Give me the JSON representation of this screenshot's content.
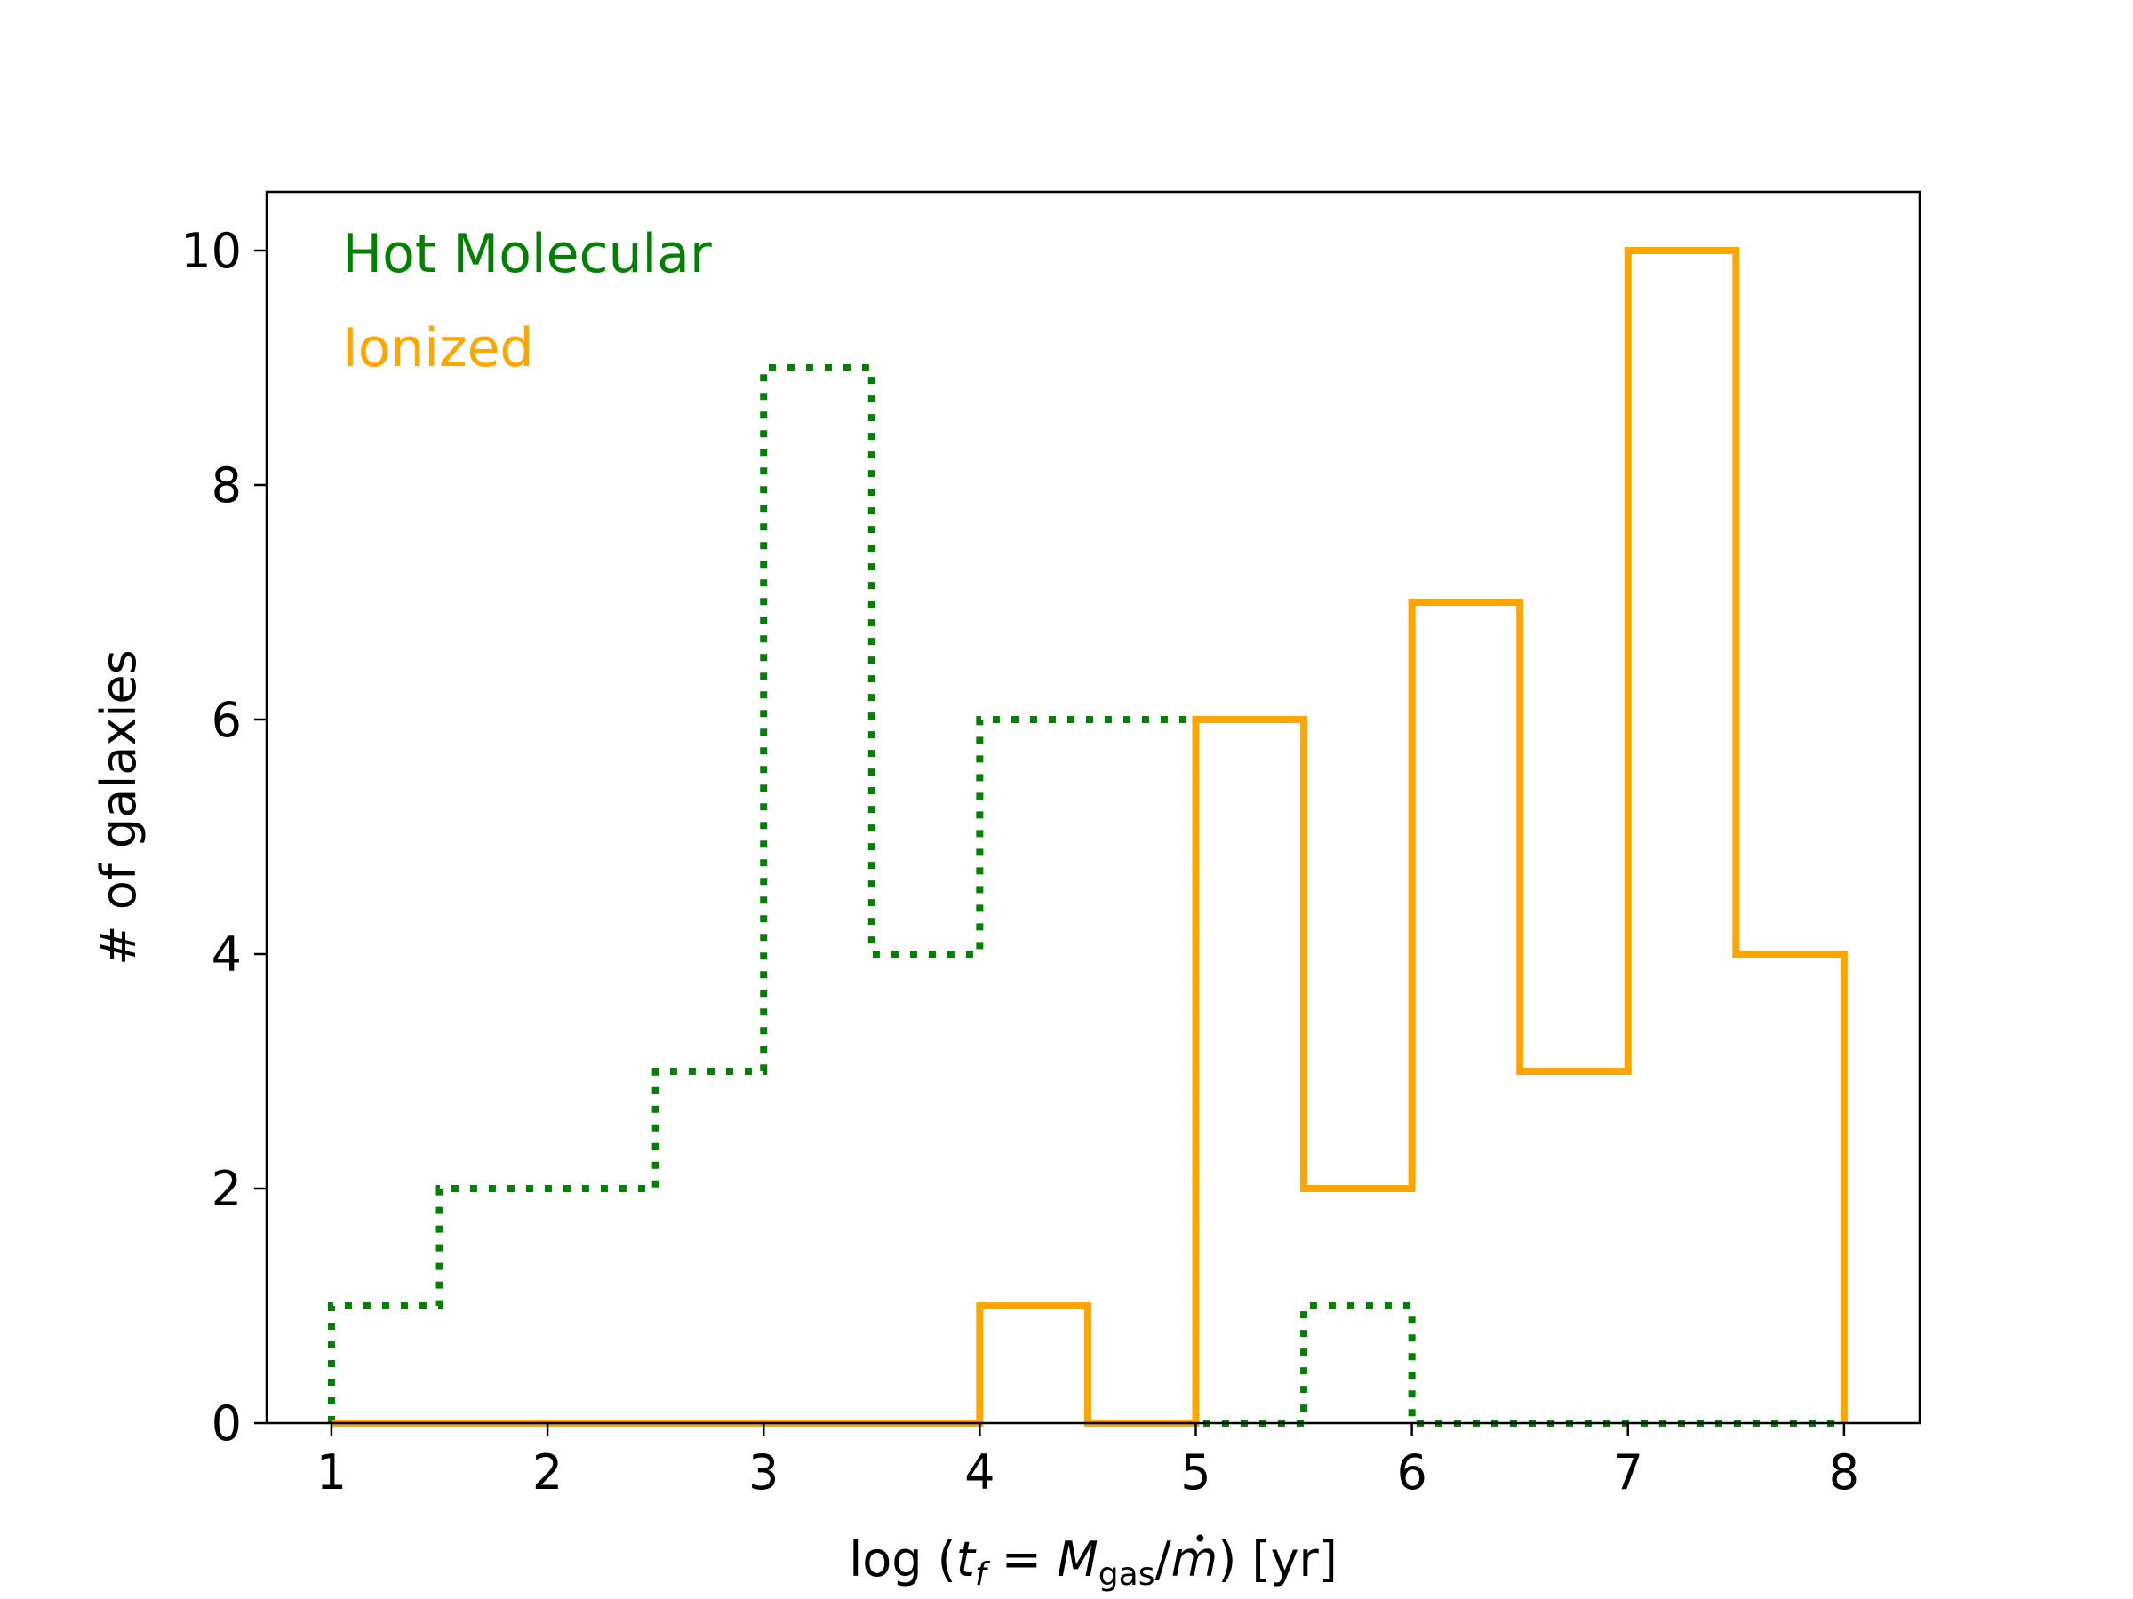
{
  "chart_data": {
    "type": "histogram-step",
    "bin_edges": [
      1,
      1.5,
      2,
      2.5,
      3,
      3.5,
      4,
      4.5,
      5,
      5.5,
      6,
      6.5,
      7,
      7.5,
      8
    ],
    "series": [
      {
        "name": "Hot Molecular",
        "color": "#008000",
        "linestyle": "dotted",
        "counts": [
          1,
          2,
          2,
          3,
          9,
          4,
          6,
          6,
          0,
          1,
          0,
          0,
          0,
          0
        ]
      },
      {
        "name": "Ionized",
        "color": "#FFA500",
        "linestyle": "solid",
        "counts": [
          0,
          0,
          0,
          0,
          0,
          0,
          1,
          0,
          6,
          2,
          7,
          3,
          10,
          4
        ]
      }
    ],
    "xlabel_parts": {
      "prefix": "log (",
      "t": "t",
      "t_sub": "f",
      "eq": " = ",
      "M": "M",
      "M_sub": "gas",
      "slash": "/",
      "mdot": "m",
      "suffix": ") [yr]"
    },
    "ylabel": "# of galaxies",
    "xticks": [
      1,
      2,
      3,
      4,
      5,
      6,
      7,
      8
    ],
    "yticks": [
      0,
      2,
      4,
      6,
      8,
      10
    ],
    "xlim": [
      0.7,
      8.35
    ],
    "ylim": [
      0,
      10.5
    ],
    "grid": false,
    "legend_position": "top-left"
  }
}
